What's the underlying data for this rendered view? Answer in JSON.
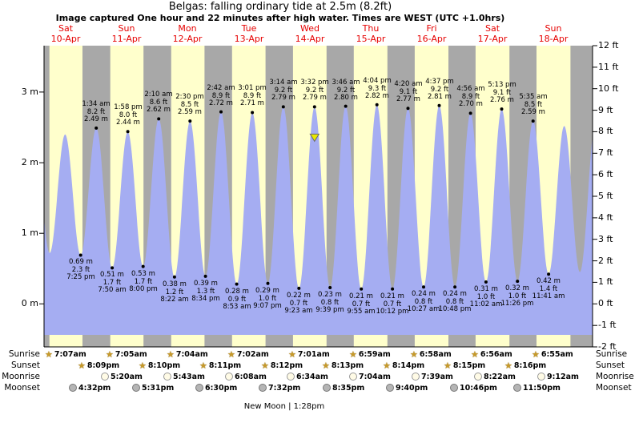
{
  "header": {
    "title": "Belgas: falling ordinary tide at 2.5m (8.2ft)",
    "subtitle": "Image captured One hour and 22 minutes after high water. Times are WEST (UTC +1.0hrs)"
  },
  "days": [
    {
      "name": "Sat",
      "date": "10-Apr",
      "t": 13.6
    },
    {
      "name": "Sun",
      "date": "11-Apr",
      "t": 37.6
    },
    {
      "name": "Mon",
      "date": "12-Apr",
      "t": 61.6
    },
    {
      "name": "Tue",
      "date": "13-Apr",
      "t": 85.6
    },
    {
      "name": "Wed",
      "date": "14-Apr",
      "t": 109.6
    },
    {
      "name": "Thu",
      "date": "15-Apr",
      "t": 133.6
    },
    {
      "name": "Fri",
      "date": "16-Apr",
      "t": 157.6
    },
    {
      "name": "Sat",
      "date": "17-Apr",
      "t": 181.6
    },
    {
      "name": "Sun",
      "date": "18-Apr",
      "t": 205.6
    }
  ],
  "footer": {
    "text": "New Moon | 1:28pm"
  },
  "chart_data": {
    "type": "area",
    "title": "Belgas: falling ordinary tide at 2.5m (8.2ft)",
    "x_axis": {
      "unit": "hours since 10-Apr 00:00",
      "start_day": "10-Apr",
      "end_day": "18-Apr"
    },
    "y_axis_left": {
      "unit": "m",
      "ticks": [
        {
          "v": 0,
          "label": "0 m"
        },
        {
          "v": 1,
          "label": "1 m"
        },
        {
          "v": 2,
          "label": "2 m"
        },
        {
          "v": 3,
          "label": "3 m"
        }
      ]
    },
    "y_axis_right": {
      "unit": "ft",
      "ticks": [
        {
          "v": 12,
          "label": "12 ft"
        },
        {
          "v": 11,
          "label": "11 ft"
        },
        {
          "v": 10,
          "label": "10 ft"
        },
        {
          "v": 9,
          "label": "9 ft"
        },
        {
          "v": 8,
          "label": "8 ft"
        },
        {
          "v": 7,
          "label": "7 ft"
        },
        {
          "v": 6,
          "label": "6 ft"
        },
        {
          "v": 5,
          "label": "5 ft"
        },
        {
          "v": 4,
          "label": "4 ft"
        },
        {
          "v": 3,
          "label": "3 ft"
        },
        {
          "v": 2,
          "label": "2 ft"
        },
        {
          "v": 1,
          "label": "1 ft"
        },
        {
          "v": 0,
          "label": "0 ft"
        },
        {
          "v": -1,
          "label": "-1 ft"
        },
        {
          "v": -2,
          "label": "-2 ft"
        }
      ]
    },
    "tide_events": [
      {
        "t": 1.1,
        "m": 2.45,
        "type": "high"
      },
      {
        "t": 7.2,
        "m": 0.72,
        "type": "low"
      },
      {
        "t": 13.3,
        "m": 2.4,
        "type": "high"
      },
      {
        "t": 19.42,
        "m": 0.69,
        "type": "low",
        "lines": [
          "0.69 m",
          "2.3 ft",
          "7:25 pm"
        ]
      },
      {
        "t": 25.57,
        "m": 2.49,
        "type": "high",
        "lines": [
          "1:34 am",
          "8.2 ft",
          "2.49 m"
        ]
      },
      {
        "t": 31.83,
        "m": 0.51,
        "type": "low",
        "lines": [
          "0.51 m",
          "1.7 ft",
          "7:50 am"
        ]
      },
      {
        "t": 37.97,
        "m": 2.44,
        "type": "high",
        "lines": [
          "1:58 pm",
          "8.0 ft",
          "2.44 m"
        ]
      },
      {
        "t": 44.0,
        "m": 0.53,
        "type": "low",
        "lines": [
          "0.53 m",
          "1.7 ft",
          "8:00 pm"
        ]
      },
      {
        "t": 50.17,
        "m": 2.62,
        "type": "high",
        "lines": [
          "2:10 am",
          "8.6 ft",
          "2.62 m"
        ]
      },
      {
        "t": 56.37,
        "m": 0.38,
        "type": "low",
        "lines": [
          "0.38 m",
          "1.2 ft",
          "8:22 am"
        ]
      },
      {
        "t": 62.5,
        "m": 2.59,
        "type": "high",
        "lines": [
          "2:30 pm",
          "8.5 ft",
          "2.59 m"
        ]
      },
      {
        "t": 68.57,
        "m": 0.39,
        "type": "low",
        "lines": [
          "0.39 m",
          "1.3 ft",
          "8:34 pm"
        ]
      },
      {
        "t": 74.7,
        "m": 2.72,
        "type": "high",
        "lines": [
          "2:42 am",
          "8.9 ft",
          "2.72 m"
        ]
      },
      {
        "t": 80.88,
        "m": 0.28,
        "type": "low",
        "lines": [
          "0.28 m",
          "0.9 ft",
          "8:53 am"
        ]
      },
      {
        "t": 87.02,
        "m": 2.71,
        "type": "high",
        "lines": [
          "3:01 pm",
          "8.9 ft",
          "2.71 m"
        ]
      },
      {
        "t": 93.12,
        "m": 0.29,
        "type": "low",
        "lines": [
          "0.29 m",
          "1.0 ft",
          "9:07 pm"
        ]
      },
      {
        "t": 99.23,
        "m": 2.79,
        "type": "high",
        "lines": [
          "3:14 am",
          "9.2 ft",
          "2.79 m"
        ]
      },
      {
        "t": 105.38,
        "m": 0.22,
        "type": "low",
        "lines": [
          "0.22 m",
          "0.7 ft",
          "9:23 am"
        ]
      },
      {
        "t": 111.53,
        "m": 2.79,
        "type": "high",
        "lines": [
          "3:32 pm",
          "9.2 ft",
          "2.79 m"
        ],
        "marker": true
      },
      {
        "t": 117.65,
        "m": 0.23,
        "type": "low",
        "lines": [
          "0.23 m",
          "0.8 ft",
          "9:39 pm"
        ]
      },
      {
        "t": 123.77,
        "m": 2.8,
        "type": "high",
        "lines": [
          "3:46 am",
          "9.2 ft",
          "2.80 m"
        ]
      },
      {
        "t": 129.92,
        "m": 0.21,
        "type": "low",
        "lines": [
          "0.21 m",
          "0.7 ft",
          "9:55 am"
        ]
      },
      {
        "t": 136.07,
        "m": 2.82,
        "type": "high",
        "lines": [
          "4:04 pm",
          "9.3 ft",
          "2.82 m"
        ]
      },
      {
        "t": 142.2,
        "m": 0.21,
        "type": "low",
        "lines": [
          "0.21 m",
          "0.7 ft",
          "10:12 pm"
        ]
      },
      {
        "t": 148.33,
        "m": 2.77,
        "type": "high",
        "lines": [
          "4:20 am",
          "9.1 ft",
          "2.77 m"
        ]
      },
      {
        "t": 154.45,
        "m": 0.24,
        "type": "low",
        "lines": [
          "0.24 m",
          "0.8 ft",
          "10:27 am"
        ]
      },
      {
        "t": 160.62,
        "m": 2.81,
        "type": "high",
        "lines": [
          "4:37 pm",
          "9.2 ft",
          "2.81 m"
        ]
      },
      {
        "t": 166.8,
        "m": 0.24,
        "type": "low",
        "lines": [
          "0.24 m",
          "0.8 ft",
          "10:48 pm"
        ]
      },
      {
        "t": 172.93,
        "m": 2.7,
        "type": "high",
        "lines": [
          "4:56 am",
          "8.9 ft",
          "2.70 m"
        ]
      },
      {
        "t": 179.03,
        "m": 0.31,
        "type": "low",
        "lines": [
          "0.31 m",
          "1.0 ft",
          "11:02 am"
        ]
      },
      {
        "t": 185.22,
        "m": 2.76,
        "type": "high",
        "lines": [
          "5:13 pm",
          "9.1 ft",
          "2.76 m"
        ]
      },
      {
        "t": 191.43,
        "m": 0.32,
        "type": "low",
        "lines": [
          "0.32 m",
          "1.0 ft",
          "11:26 pm"
        ]
      },
      {
        "t": 197.58,
        "m": 2.59,
        "type": "high",
        "lines": [
          "5:35 am",
          "8.5 ft",
          "2.59 m"
        ]
      },
      {
        "t": 203.68,
        "m": 0.42,
        "type": "low",
        "lines": [
          "0.42 m",
          "1.4 ft",
          "11:41 am"
        ]
      },
      {
        "t": 209.85,
        "m": 2.52,
        "type": "high"
      },
      {
        "t": 216.0,
        "m": 0.45,
        "type": "low"
      },
      {
        "t": 222.3,
        "m": 2.6,
        "type": "high"
      }
    ],
    "day_bands": [
      [
        7.12,
        20.15
      ],
      [
        31.08,
        44.17
      ],
      [
        55.07,
        68.18
      ],
      [
        79.03,
        92.2
      ],
      [
        103.02,
        116.22
      ],
      [
        126.98,
        140.23
      ],
      [
        150.97,
        164.25
      ],
      [
        174.93,
        188.27
      ],
      [
        198.92,
        212.28
      ]
    ],
    "astro_rows": [
      {
        "id": "sunrise",
        "label": "Sunrise",
        "icon": "star",
        "events": [
          {
            "t": 7.12,
            "time": "7:07am"
          },
          {
            "t": 31.08,
            "time": "7:05am"
          },
          {
            "t": 55.07,
            "time": "7:04am"
          },
          {
            "t": 79.03,
            "time": "7:02am"
          },
          {
            "t": 103.02,
            "time": "7:01am"
          },
          {
            "t": 126.98,
            "time": "6:59am"
          },
          {
            "t": 150.97,
            "time": "6:58am"
          },
          {
            "t": 174.93,
            "time": "6:56am"
          },
          {
            "t": 198.92,
            "time": "6:55am"
          }
        ]
      },
      {
        "id": "sunset",
        "label": "Sunset",
        "icon": "star",
        "events": [
          {
            "t": 20.15,
            "time": "8:09pm"
          },
          {
            "t": 44.17,
            "time": "8:10pm"
          },
          {
            "t": 68.18,
            "time": "8:11pm"
          },
          {
            "t": 92.2,
            "time": "8:12pm"
          },
          {
            "t": 116.22,
            "time": "8:13pm"
          },
          {
            "t": 140.23,
            "time": "8:14pm"
          },
          {
            "t": 164.25,
            "time": "8:15pm"
          },
          {
            "t": 188.27,
            "time": "8:16pm"
          }
        ]
      },
      {
        "id": "moonrise",
        "label": "Moonrise",
        "icon": "moon-light",
        "events": [
          {
            "t": 29.33,
            "time": "5:20am"
          },
          {
            "t": 53.72,
            "time": "5:43am"
          },
          {
            "t": 78.13,
            "time": "6:08am"
          },
          {
            "t": 102.57,
            "time": "6:34am"
          },
          {
            "t": 127.07,
            "time": "7:04am"
          },
          {
            "t": 151.65,
            "time": "7:39am"
          },
          {
            "t": 176.37,
            "time": "8:22am"
          },
          {
            "t": 201.2,
            "time": "9:12am"
          }
        ]
      },
      {
        "id": "moonset",
        "label": "Moonset",
        "icon": "moon-dark",
        "events": [
          {
            "t": 16.53,
            "time": "4:32pm"
          },
          {
            "t": 41.52,
            "time": "5:31pm"
          },
          {
            "t": 66.5,
            "time": "6:30pm"
          },
          {
            "t": 91.53,
            "time": "7:32pm"
          },
          {
            "t": 116.58,
            "time": "8:35pm"
          },
          {
            "t": 141.67,
            "time": "9:40pm"
          },
          {
            "t": 166.77,
            "time": "10:46pm"
          },
          {
            "t": 191.83,
            "time": "11:50pm"
          }
        ]
      }
    ],
    "colors": {
      "day_band": "#ffffcc",
      "night_band": "#a8a8a8",
      "tide_fill": "#a5adf2",
      "day_label_red": "#e60000",
      "marker": "#e8e800"
    }
  }
}
